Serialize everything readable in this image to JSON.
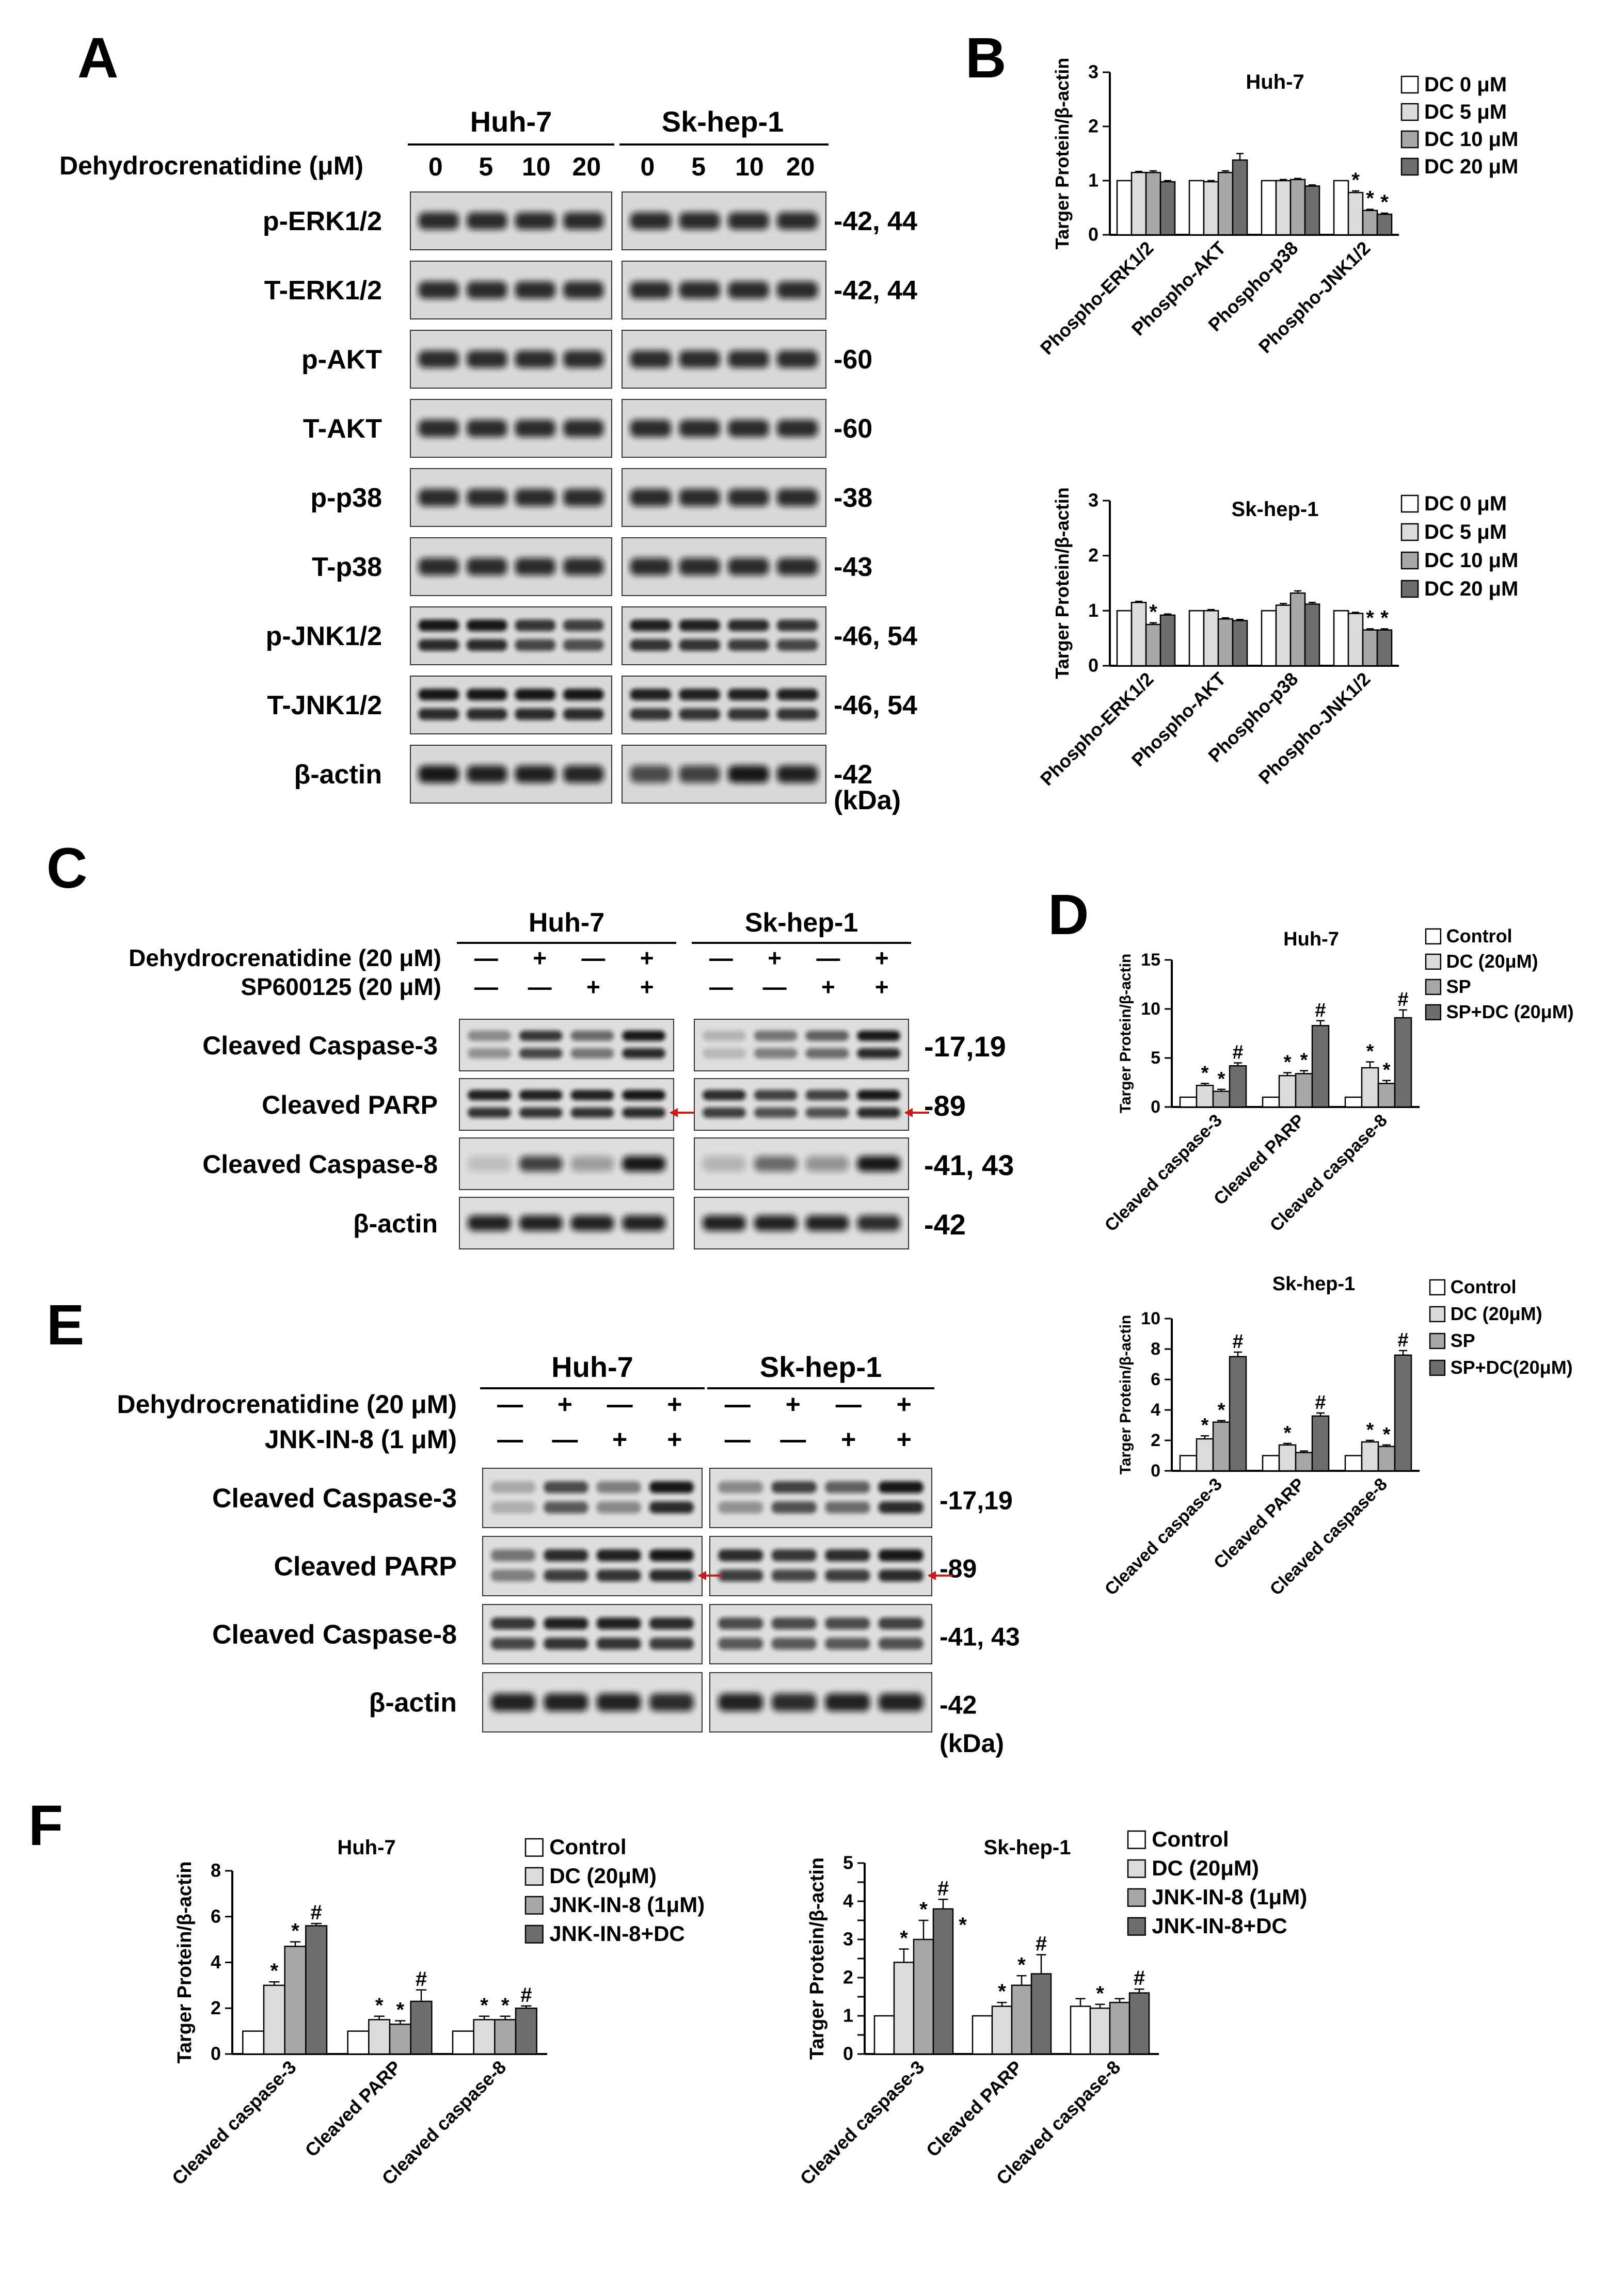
{
  "panels": {
    "A": {
      "label": "A",
      "treatment_label": "Dehydrocrenatidine (μM)",
      "cell_lines": [
        "Huh-7",
        "Sk-hep-1"
      ],
      "doses": [
        "0",
        "5",
        "10",
        "20"
      ],
      "rows": [
        {
          "name": "p-ERK1/2",
          "mw": "-42, 44",
          "bands": 1
        },
        {
          "name": "T-ERK1/2",
          "mw": "-42, 44",
          "bands": 1
        },
        {
          "name": "p-AKT",
          "mw": "-60",
          "bands": 1
        },
        {
          "name": "T-AKT",
          "mw": "-60",
          "bands": 1
        },
        {
          "name": "p-p38",
          "mw": "-38",
          "bands": 1
        },
        {
          "name": "T-p38",
          "mw": "-43",
          "bands": 1
        },
        {
          "name": "p-JNK1/2",
          "mw": "-46, 54",
          "bands": 2
        },
        {
          "name": "T-JNK1/2",
          "mw": "-46, 54",
          "bands": 2
        },
        {
          "name": "β-actin",
          "mw": "-42",
          "bands": 1
        }
      ],
      "unit": "(kDa)"
    },
    "C": {
      "label": "C",
      "cell_lines": [
        "Huh-7",
        "Sk-hep-1"
      ],
      "treatments": [
        {
          "name": "Dehydrocrenatidine (20 μM)",
          "signs": [
            "—",
            "+",
            "—",
            "+",
            "—",
            "+",
            "—",
            "+"
          ]
        },
        {
          "name": "SP600125 (20 μM)",
          "signs": [
            "—",
            "—",
            "+",
            "+",
            "—",
            "—",
            "+",
            "+"
          ]
        }
      ],
      "rows": [
        {
          "name": "Cleaved Caspase-3",
          "mw": "-17,19",
          "bands": 2
        },
        {
          "name": "Cleaved PARP",
          "mw": "-89",
          "bands": 2
        },
        {
          "name": "Cleaved Caspase-8",
          "mw": "-41, 43",
          "bands": 1
        },
        {
          "name": "β-actin",
          "mw": "-42",
          "bands": 1
        }
      ]
    },
    "E": {
      "label": "E",
      "cell_lines": [
        "Huh-7",
        "Sk-hep-1"
      ],
      "treatments": [
        {
          "name": "Dehydrocrenatidine (20 μM)",
          "signs": [
            "—",
            "+",
            "—",
            "+",
            "—",
            "+",
            "—",
            "+"
          ]
        },
        {
          "name": "JNK-IN-8   (1 μM)",
          "signs": [
            "—",
            "—",
            "+",
            "+",
            "—",
            "—",
            "+",
            "+"
          ]
        }
      ],
      "rows": [
        {
          "name": "Cleaved Caspase-3",
          "mw": "-17,19",
          "bands": 2
        },
        {
          "name": "Cleaved PARP",
          "mw": "-89",
          "bands": 2
        },
        {
          "name": "Cleaved Caspase-8",
          "mw": "-41, 43",
          "bands": 2
        },
        {
          "name": "β-actin",
          "mw": "-42",
          "bands": 1
        }
      ],
      "unit": "(kDa)"
    },
    "B": {
      "label": "B"
    },
    "D": {
      "label": "D"
    },
    "F": {
      "label": "F"
    }
  },
  "colors": {
    "g0": "#ffffff",
    "g1": "#dcdcdc",
    "g2": "#a8a8a8",
    "g3": "#6e6e6e"
  },
  "chart_data": [
    {
      "id": "B1",
      "type": "bar",
      "title": "Huh-7",
      "ylabel": "Targer Protein/β-actin",
      "ylim": [
        0,
        3
      ],
      "yticks": [
        0,
        1,
        2,
        3
      ],
      "categories": [
        "Phospho-ERK1/2",
        "Phospho-AKT",
        "Phospho-p38",
        "Phospho-JNK1/2"
      ],
      "series": [
        {
          "name": "DC 0 μM",
          "values": [
            1.0,
            1.0,
            1.0,
            1.0
          ],
          "err": [
            0,
            0,
            0,
            0
          ],
          "marks": [
            "",
            "",
            "",
            ""
          ]
        },
        {
          "name": "DC 5 μM",
          "values": [
            1.15,
            0.98,
            1.0,
            0.78
          ],
          "err": [
            0.02,
            0.02,
            0.02,
            0.03
          ],
          "marks": [
            "",
            "",
            "",
            "*"
          ]
        },
        {
          "name": "DC 10 μM",
          "values": [
            1.15,
            1.15,
            1.02,
            0.45
          ],
          "err": [
            0.03,
            0.03,
            0.02,
            0.02
          ],
          "marks": [
            "",
            "",
            "",
            "*"
          ]
        },
        {
          "name": "DC 20 μM",
          "values": [
            0.98,
            1.38,
            0.9,
            0.38
          ],
          "err": [
            0.02,
            0.12,
            0.02,
            0.02
          ],
          "marks": [
            "",
            "",
            "",
            "*"
          ]
        }
      ]
    },
    {
      "id": "B2",
      "type": "bar",
      "title": "Sk-hep-1",
      "ylabel": "Targer Protein/β-actin",
      "ylim": [
        0,
        3
      ],
      "yticks": [
        0,
        1,
        2,
        3
      ],
      "categories": [
        "Phospho-ERK1/2",
        "Phospho-AKT",
        "Phospho-p38",
        "Phospho-JNK1/2"
      ],
      "series": [
        {
          "name": "DC 0 μM",
          "values": [
            1.0,
            1.0,
            1.0,
            1.0
          ],
          "err": [
            0,
            0,
            0,
            0
          ],
          "marks": [
            "",
            "",
            "",
            ""
          ]
        },
        {
          "name": "DC 5 μM",
          "values": [
            1.15,
            1.0,
            1.1,
            0.95
          ],
          "err": [
            0.02,
            0.02,
            0.03,
            0.02
          ],
          "marks": [
            "",
            "",
            "",
            ""
          ]
        },
        {
          "name": "DC 10 μM",
          "values": [
            0.75,
            0.85,
            1.32,
            0.65
          ],
          "err": [
            0.03,
            0.02,
            0.04,
            0.02
          ],
          "marks": [
            "*",
            "",
            "",
            "*"
          ]
        },
        {
          "name": "DC 20 μM",
          "values": [
            0.92,
            0.82,
            1.12,
            0.65
          ],
          "err": [
            0.02,
            0.02,
            0.03,
            0.02
          ],
          "marks": [
            "",
            "",
            "",
            "*"
          ]
        }
      ]
    },
    {
      "id": "D1",
      "type": "bar",
      "title": "Huh-7",
      "ylabel": "Targer Protein/β-actin",
      "ylim": [
        0,
        15
      ],
      "yticks": [
        0,
        5,
        10,
        15
      ],
      "categories": [
        "Cleaved caspase-3",
        "Cleaved PARP",
        "Cleaved caspase-8"
      ],
      "series": [
        {
          "name": "Control",
          "values": [
            1.0,
            1.0,
            1.0
          ],
          "err": [
            0,
            0,
            0
          ],
          "marks": [
            "",
            "",
            ""
          ]
        },
        {
          "name": "DC (20μM)",
          "values": [
            2.2,
            3.2,
            4.0
          ],
          "err": [
            0.2,
            0.3,
            0.6
          ],
          "marks": [
            "*",
            "*",
            "*"
          ]
        },
        {
          "name": "SP",
          "values": [
            1.6,
            3.4,
            2.4
          ],
          "err": [
            0.2,
            0.3,
            0.3
          ],
          "marks": [
            "*",
            "*",
            "*"
          ]
        },
        {
          "name": "SP+DC (20μM)",
          "values": [
            4.2,
            8.3,
            9.1
          ],
          "err": [
            0.3,
            0.5,
            0.8
          ],
          "marks": [
            "#",
            "#",
            "#"
          ]
        }
      ]
    },
    {
      "id": "D2",
      "type": "bar",
      "title": "Sk-hep-1",
      "ylabel": "Targer Protein/β-actin",
      "ylim": [
        0,
        10
      ],
      "yticks": [
        0,
        2,
        4,
        6,
        8,
        10
      ],
      "categories": [
        "Cleaved caspase-3",
        "Cleaved PARP",
        "Cleaved caspase-8"
      ],
      "series": [
        {
          "name": "Control",
          "values": [
            1.0,
            1.0,
            1.0
          ],
          "err": [
            0,
            0,
            0
          ],
          "marks": [
            "",
            "",
            ""
          ]
        },
        {
          "name": "DC (20μM)",
          "values": [
            2.1,
            1.7,
            1.9
          ],
          "err": [
            0.2,
            0.1,
            0.1
          ],
          "marks": [
            "*",
            "*",
            "*"
          ]
        },
        {
          "name": "SP",
          "values": [
            3.2,
            1.2,
            1.6
          ],
          "err": [
            0.1,
            0.1,
            0.1
          ],
          "marks": [
            "*",
            "",
            "*"
          ]
        },
        {
          "name": "SP+DC(20μM)",
          "values": [
            7.5,
            3.6,
            7.6
          ],
          "err": [
            0.3,
            0.2,
            0.3
          ],
          "marks": [
            "#",
            "#",
            "#"
          ]
        }
      ]
    },
    {
      "id": "F1",
      "type": "bar",
      "title": "Huh-7",
      "ylabel": "Targer Protein/β-actin",
      "ylim": [
        0,
        8
      ],
      "yticks": [
        0,
        2,
        4,
        6,
        8
      ],
      "categories": [
        "Cleaved caspase-3",
        "Cleaved PARP",
        "Cleaved caspase-8"
      ],
      "series": [
        {
          "name": "Control",
          "values": [
            1.0,
            1.0,
            1.0
          ],
          "err": [
            0,
            0,
            0
          ],
          "marks": [
            "",
            "",
            ""
          ]
        },
        {
          "name": "DC (20μM)",
          "values": [
            3.0,
            1.5,
            1.5
          ],
          "err": [
            0.15,
            0.15,
            0.15
          ],
          "marks": [
            "*",
            "*",
            "*"
          ]
        },
        {
          "name": "JNK-IN-8 (1μM)",
          "values": [
            4.7,
            1.3,
            1.5
          ],
          "err": [
            0.2,
            0.15,
            0.15
          ],
          "marks": [
            "*",
            "*",
            "*"
          ]
        },
        {
          "name": "JNK-IN-8+DC",
          "values": [
            5.6,
            2.3,
            2.0
          ],
          "err": [
            0.1,
            0.5,
            0.1
          ],
          "marks": [
            "#",
            "#",
            "#"
          ]
        }
      ]
    },
    {
      "id": "F2",
      "type": "bar",
      "title": "Sk-hep-1",
      "ylabel": "Targer Protein/β-actin",
      "ylim": [
        0,
        5
      ],
      "yticks": [
        0,
        0.5,
        1,
        1.5,
        2,
        2.5,
        3,
        3.5,
        4,
        4.5,
        5
      ],
      "ytick_labels": [
        "0",
        "",
        "1",
        "",
        "2",
        "",
        "3",
        "",
        "4",
        "",
        "5"
      ],
      "categories": [
        "Cleaved caspase-3",
        "Cleaved PARP",
        "Cleaved caspase-8"
      ],
      "extra_marks": [
        "*"
      ],
      "series": [
        {
          "name": "Control",
          "values": [
            1.0,
            1.0,
            1.25
          ],
          "err": [
            0,
            0,
            0.2
          ],
          "marks": [
            "",
            "",
            ""
          ]
        },
        {
          "name": "DC (20μM)",
          "values": [
            2.4,
            1.25,
            1.2
          ],
          "err": [
            0.35,
            0.1,
            0.1
          ],
          "marks": [
            "*",
            "*",
            "*"
          ]
        },
        {
          "name": "JNK-IN-8 (1μM)",
          "values": [
            3.0,
            1.8,
            1.35
          ],
          "err": [
            0.5,
            0.25,
            0.1
          ],
          "marks": [
            "*",
            "*",
            ""
          ]
        },
        {
          "name": "JNK-IN-8+DC",
          "values": [
            3.8,
            2.1,
            1.6
          ],
          "err": [
            0.25,
            0.5,
            0.1
          ],
          "marks": [
            "#",
            "#",
            "#"
          ]
        }
      ]
    }
  ]
}
